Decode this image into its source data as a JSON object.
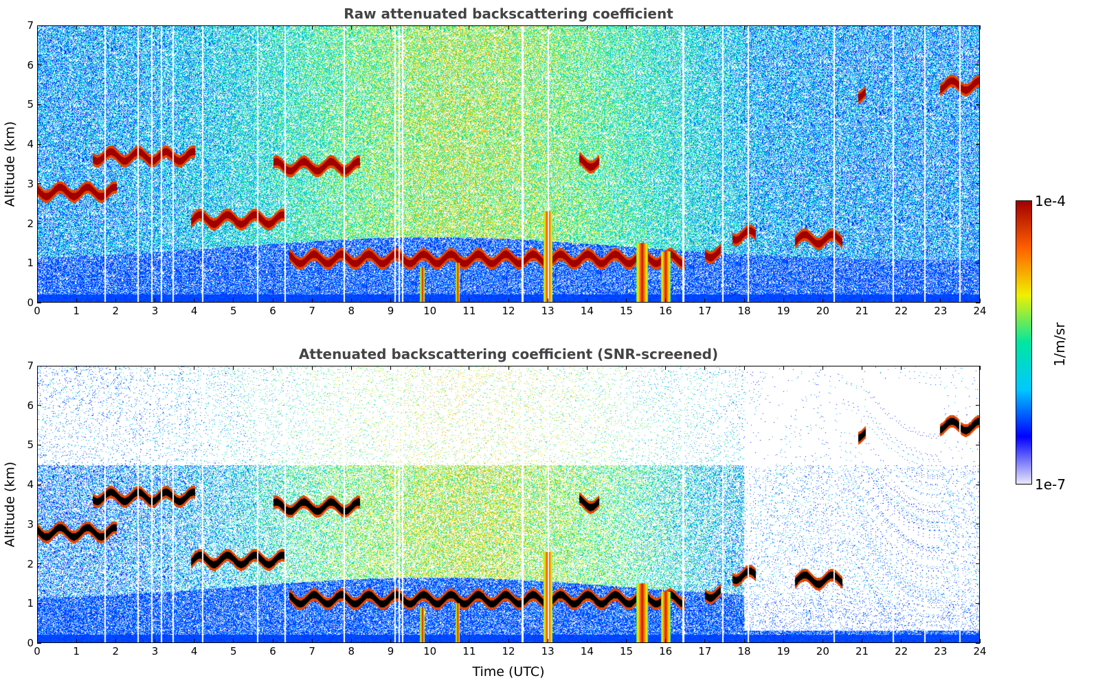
{
  "chart_data": [
    {
      "type": "heatmap",
      "title": "Raw attenuated backscattering coefficient",
      "ylabel": "Altitude (km)",
      "xlabel": "",
      "xlim": [
        0,
        24
      ],
      "ylim": [
        0,
        7
      ],
      "xticks": [
        "0",
        "1",
        "2",
        "3",
        "4",
        "5",
        "6",
        "7",
        "8",
        "9",
        "10",
        "11",
        "12",
        "13",
        "14",
        "15",
        "16",
        "17",
        "18",
        "19",
        "20",
        "21",
        "22",
        "23",
        "24"
      ],
      "yticks": [
        "0",
        "1",
        "2",
        "3",
        "4",
        "5",
        "6",
        "7"
      ],
      "cloud_layers": [
        {
          "t0": 0.0,
          "t1": 2.0,
          "alt": 2.8
        },
        {
          "t0": 1.4,
          "t1": 4.0,
          "alt": 3.7
        },
        {
          "t0": 3.9,
          "t1": 6.3,
          "alt": 2.1
        },
        {
          "t0": 6.0,
          "t1": 8.2,
          "alt": 3.45
        },
        {
          "t0": 6.4,
          "t1": 16.5,
          "alt": 1.1
        },
        {
          "t0": 13.8,
          "t1": 14.3,
          "alt": 3.55
        },
        {
          "t0": 17.0,
          "t1": 17.4,
          "alt": 1.25
        },
        {
          "t0": 17.7,
          "t1": 18.3,
          "alt": 1.7
        },
        {
          "t0": 19.3,
          "t1": 20.5,
          "alt": 1.6
        },
        {
          "t0": 20.9,
          "t1": 21.1,
          "alt": 5.3
        },
        {
          "t0": 23.0,
          "t1": 24.0,
          "alt": 5.5
        }
      ]
    },
    {
      "type": "heatmap",
      "title": "Attenuated backscattering coefficient (SNR-screened)",
      "ylabel": "Altitude (km)",
      "xlabel": "Time (UTC)",
      "xlim": [
        0,
        24
      ],
      "ylim": [
        0,
        7
      ],
      "xticks": [
        "0",
        "1",
        "2",
        "3",
        "4",
        "5",
        "6",
        "7",
        "8",
        "9",
        "10",
        "11",
        "12",
        "13",
        "14",
        "15",
        "16",
        "17",
        "18",
        "19",
        "20",
        "21",
        "22",
        "23",
        "24"
      ],
      "yticks": [
        "0",
        "1",
        "2",
        "3",
        "4",
        "5",
        "6",
        "7"
      ]
    }
  ],
  "colorbar": {
    "max_label": "1e-4",
    "min_label": "1e-7",
    "unit_label": "1/m/sr",
    "colors": [
      "#e8e8f8",
      "#0000ff",
      "#00c8ff",
      "#00e6a0",
      "#f0f000",
      "#ff6000",
      "#a00000"
    ]
  }
}
